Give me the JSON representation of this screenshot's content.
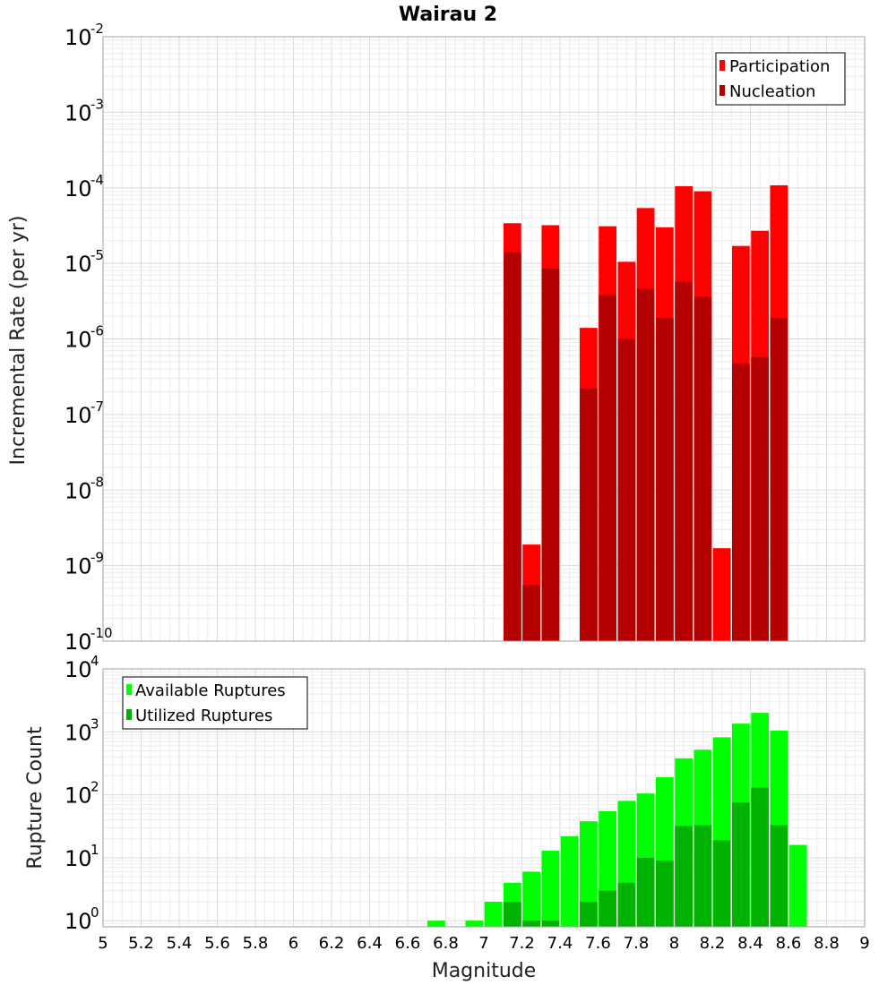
{
  "title": "Wairau 2",
  "xlabel": "Magnitude",
  "x_ticks": [
    "5",
    "5.2",
    "5.4",
    "5.6",
    "5.8",
    "6",
    "6.2",
    "6.4",
    "6.6",
    "6.8",
    "7",
    "7.2",
    "7.4",
    "7.6",
    "7.8",
    "8",
    "8.2",
    "8.4",
    "8.6",
    "8.8",
    "9"
  ],
  "chart_data": [
    {
      "type": "bar",
      "scale": "log",
      "xlabel": "Magnitude",
      "ylabel": "Incremental Rate (per yr)",
      "xlim": [
        5,
        9
      ],
      "ylim": [
        1e-10,
        0.01
      ],
      "grid": true,
      "legend_position": "top-right",
      "y_ticks": [
        {
          "base": "10",
          "exp": "-2"
        },
        {
          "base": "10",
          "exp": "-3"
        },
        {
          "base": "10",
          "exp": "-4"
        },
        {
          "base": "10",
          "exp": "-5"
        },
        {
          "base": "10",
          "exp": "-6"
        },
        {
          "base": "10",
          "exp": "-7"
        },
        {
          "base": "10",
          "exp": "-8"
        },
        {
          "base": "10",
          "exp": "-9"
        },
        {
          "base": "10",
          "exp": "-10"
        }
      ],
      "x": [
        7.15,
        7.25,
        7.35,
        7.55,
        7.65,
        7.75,
        7.85,
        7.95,
        8.05,
        8.15,
        8.25,
        8.35,
        8.45,
        8.55
      ],
      "series": [
        {
          "name": "Participation",
          "color": "#ff0000",
          "values": [
            3.4e-05,
            1.9e-09,
            3.2e-05,
            1.4e-06,
            3.1e-05,
            1.05e-05,
            5.4e-05,
            3e-05,
            0.000105,
            9e-05,
            1.7e-09,
            1.7e-05,
            2.7e-05,
            0.000108
          ]
        },
        {
          "name": "Nucleation",
          "color": "#b30000",
          "values": [
            1.4e-05,
            5.5e-10,
            8.5e-06,
            2.2e-07,
            3.8e-06,
            1e-06,
            4.6e-06,
            1.9e-06,
            5.7e-06,
            3.6e-06,
            null,
            4.7e-07,
            5.8e-07,
            1.9e-06
          ]
        }
      ]
    },
    {
      "type": "bar",
      "scale": "log",
      "xlabel": "Magnitude",
      "ylabel": "Rupture Count",
      "xlim": [
        5,
        9
      ],
      "ylim": [
        0.8,
        10000
      ],
      "grid": true,
      "legend_position": "top-left",
      "y_ticks": [
        {
          "base": "10",
          "exp": "4"
        },
        {
          "base": "10",
          "exp": "3"
        },
        {
          "base": "10",
          "exp": "2"
        },
        {
          "base": "10",
          "exp": "1"
        },
        {
          "base": "10",
          "exp": "0"
        }
      ],
      "x": [
        6.75,
        6.95,
        7.05,
        7.15,
        7.25,
        7.35,
        7.45,
        7.55,
        7.65,
        7.75,
        7.85,
        7.95,
        8.05,
        8.15,
        8.25,
        8.35,
        8.45,
        8.55,
        8.65
      ],
      "series": [
        {
          "name": "Available Ruptures",
          "color": "#00ff00",
          "values": [
            1,
            1,
            2,
            4,
            6,
            13,
            22,
            38,
            55,
            80,
            105,
            190,
            380,
            520,
            820,
            1350,
            2000,
            1050,
            16
          ]
        },
        {
          "name": "Utilized Ruptures",
          "color": "#00b300",
          "values": [
            null,
            null,
            null,
            2,
            1,
            1,
            null,
            2,
            3,
            4,
            10,
            9,
            32,
            33,
            19,
            75,
            130,
            33,
            null
          ]
        }
      ]
    }
  ]
}
